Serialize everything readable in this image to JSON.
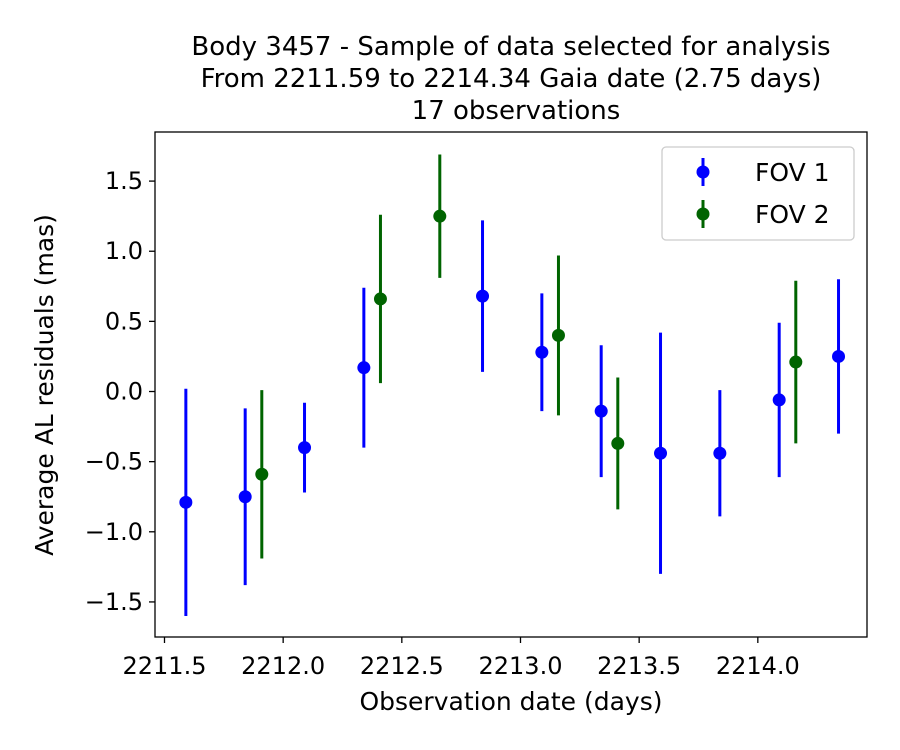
{
  "chart_data": {
    "type": "scatter",
    "title_lines": [
      "Body 3457 - Sample of data selected for analysis",
      "From 2211.59 to 2214.34 Gaia date (2.75 days)",
      "17 observations"
    ],
    "xlabel": "Observation date (days)",
    "ylabel": "Average AL residuals (mas)",
    "xlim": [
      2211.46,
      2214.46
    ],
    "ylim": [
      -1.75,
      1.85
    ],
    "x_ticks": [
      2211.5,
      2212.0,
      2212.5,
      2213.0,
      2213.5,
      2214.0
    ],
    "x_tick_labels": [
      "2211.5",
      "2212.0",
      "2212.5",
      "2213.0",
      "2213.5",
      "2214.0"
    ],
    "y_ticks": [
      1.5,
      1.0,
      0.5,
      0.0,
      -0.5,
      -1.0,
      -1.5
    ],
    "y_tick_labels": [
      "1.5",
      "1.0",
      "0.5",
      "0.0",
      "−0.5",
      "−1.0",
      "−1.5"
    ],
    "legend_position": "top-right",
    "series": [
      {
        "name": "FOV 1",
        "color": "#0000ff",
        "points": [
          {
            "x": 2211.59,
            "y": -0.79,
            "err": 0.81
          },
          {
            "x": 2211.84,
            "y": -0.75,
            "err": 0.63
          },
          {
            "x": 2212.09,
            "y": -0.4,
            "err": 0.32
          },
          {
            "x": 2212.34,
            "y": 0.17,
            "err": 0.57
          },
          {
            "x": 2212.84,
            "y": 0.68,
            "err": 0.54
          },
          {
            "x": 2213.09,
            "y": 0.28,
            "err": 0.42
          },
          {
            "x": 2213.34,
            "y": -0.14,
            "err": 0.47
          },
          {
            "x": 2213.59,
            "y": -0.44,
            "err": 0.86
          },
          {
            "x": 2213.84,
            "y": -0.44,
            "err": 0.45
          },
          {
            "x": 2214.09,
            "y": -0.06,
            "err": 0.55
          },
          {
            "x": 2214.34,
            "y": 0.25,
            "err": 0.55
          }
        ]
      },
      {
        "name": "FOV 2",
        "color": "#006400",
        "points": [
          {
            "x": 2211.91,
            "y": -0.59,
            "err": 0.6
          },
          {
            "x": 2212.41,
            "y": 0.66,
            "err": 0.6
          },
          {
            "x": 2212.66,
            "y": 1.25,
            "err": 0.44
          },
          {
            "x": 2213.16,
            "y": 0.4,
            "err": 0.57
          },
          {
            "x": 2213.41,
            "y": -0.37,
            "err": 0.47
          },
          {
            "x": 2214.16,
            "y": 0.21,
            "err": 0.58
          }
        ]
      }
    ]
  }
}
